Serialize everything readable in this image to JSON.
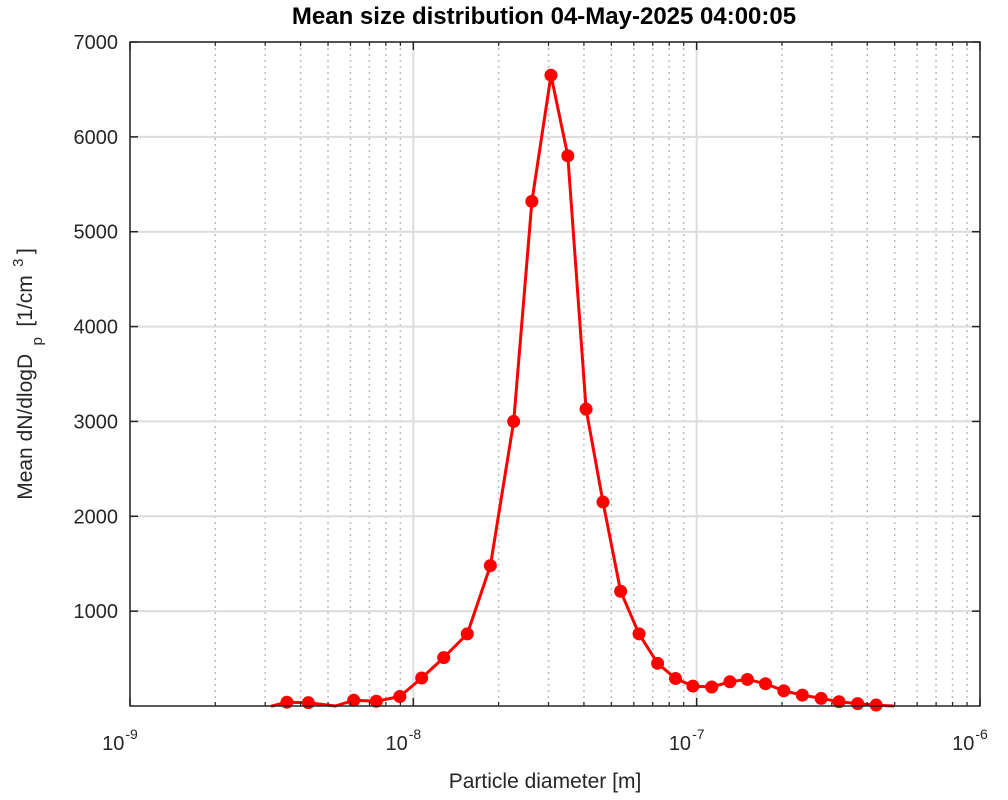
{
  "chart_data": {
    "type": "line",
    "title": "Mean size distribution 04-May-2025 04:00:05",
    "xlabel": "Particle diameter [m]",
    "ylabel": {
      "main": "Mean dN/dlogD",
      "subscript": "p",
      "unit": "[1/cm",
      "unit_superscript": "3",
      "unit_close": "]"
    },
    "xscale": "log",
    "xlim": [
      1e-09,
      1e-06
    ],
    "ylim": [
      0,
      7000
    ],
    "xticks": [
      {
        "value": 1e-09,
        "base": "10",
        "exp": "-9"
      },
      {
        "value": 1e-08,
        "base": "10",
        "exp": "-8"
      },
      {
        "value": 1e-07,
        "base": "10",
        "exp": "-7"
      },
      {
        "value": 1e-06,
        "base": "10",
        "exp": "-6"
      }
    ],
    "yticks": [
      {
        "value": 1000,
        "label": "1000"
      },
      {
        "value": 2000,
        "label": "2000"
      },
      {
        "value": 3000,
        "label": "3000"
      },
      {
        "value": 4000,
        "label": "4000"
      },
      {
        "value": 5000,
        "label": "5000"
      },
      {
        "value": 6000,
        "label": "6000"
      },
      {
        "value": 7000,
        "label": "7000"
      }
    ],
    "grid": true,
    "minor_grid_x": true,
    "legend": false,
    "series": [
      {
        "color": "#ff0000",
        "marker": "circle",
        "x": [
          3.17e-09,
          3.58e-09,
          4.26e-09,
          5.31e-09,
          6.16e-09,
          7.4e-09,
          8.96e-09,
          1.07e-08,
          1.28e-08,
          1.55e-08,
          1.87e-08,
          2.26e-08,
          2.62e-08,
          3.06e-08,
          3.51e-08,
          4.07e-08,
          4.67e-08,
          5.39e-08,
          6.26e-08,
          7.28e-08,
          8.42e-08,
          9.7e-08,
          1.13e-07,
          1.31e-07,
          1.51e-07,
          1.75e-07,
          2.03e-07,
          2.36e-07,
          2.75e-07,
          3.18e-07,
          3.7e-07,
          4.3e-07,
          4.93e-07
        ],
        "y": [
          0,
          40,
          35,
          0,
          60,
          50,
          100,
          295,
          510,
          760,
          1480,
          3000,
          5320,
          6650,
          5800,
          3130,
          2150,
          1210,
          760,
          450,
          290,
          210,
          200,
          255,
          280,
          235,
          160,
          115,
          80,
          45,
          25,
          10,
          0
        ],
        "markers": [
          false,
          true,
          true,
          false,
          true,
          true,
          true,
          true,
          true,
          true,
          true,
          true,
          true,
          true,
          true,
          true,
          true,
          true,
          true,
          true,
          true,
          true,
          true,
          true,
          true,
          true,
          true,
          true,
          true,
          true,
          true,
          true,
          false
        ]
      }
    ]
  }
}
